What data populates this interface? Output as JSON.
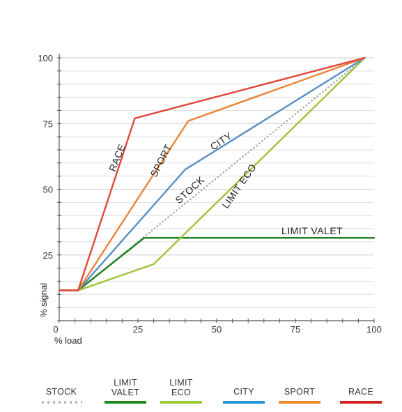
{
  "chart_data": {
    "type": "line",
    "xlabel": "% load",
    "ylabel": "% signal",
    "xlim": [
      0,
      100
    ],
    "ylim": [
      0,
      100
    ],
    "x_ticks": [
      "0",
      "25",
      "50",
      "75",
      "100"
    ],
    "y_ticks": [
      "25",
      "50",
      "75",
      "100"
    ],
    "grid": true,
    "legend_placement": "bottom",
    "series": [
      {
        "name": "STOCK",
        "legend_lines": [
          "STOCK"
        ],
        "chart_label": "STOCK",
        "color": "#a9a9a9",
        "style": "dotted",
        "points": [
          [
            0,
            11.5
          ],
          [
            6,
            11.5
          ],
          [
            97,
            100
          ]
        ]
      },
      {
        "name": "LIMIT VALET",
        "legend_lines": [
          "LIMIT",
          "VALET"
        ],
        "chart_label": "LIMIT VALET",
        "color": "#1e7f1e",
        "style": "solid",
        "points": [
          [
            0,
            11.5
          ],
          [
            6,
            11.5
          ],
          [
            27,
            31.5
          ],
          [
            100,
            31.5
          ]
        ]
      },
      {
        "name": "LIMIT ECO",
        "legend_lines": [
          "LIMIT",
          "ECO"
        ],
        "chart_label": "LIMIT ECO",
        "color": "#9dc43c",
        "style": "solid",
        "points": [
          [
            0,
            11.5
          ],
          [
            6,
            11.5
          ],
          [
            30,
            21.5
          ],
          [
            97,
            100
          ]
        ]
      },
      {
        "name": "CITY",
        "legend_lines": [
          "CITY"
        ],
        "chart_label": "CITY",
        "color": "#5a8fc4",
        "style": "solid",
        "points": [
          [
            0,
            11.5
          ],
          [
            6,
            11.5
          ],
          [
            40,
            57.5
          ],
          [
            97,
            100
          ]
        ]
      },
      {
        "name": "SPORT",
        "legend_lines": [
          "SPORT"
        ],
        "chart_label": "SPORT",
        "color": "#e8843a",
        "style": "solid",
        "points": [
          [
            0,
            11.5
          ],
          [
            6,
            11.5
          ],
          [
            41,
            76
          ],
          [
            97,
            100
          ]
        ]
      },
      {
        "name": "RACE",
        "legend_lines": [
          "RACE"
        ],
        "chart_label": "RACE",
        "color": "#e0473a",
        "style": "solid",
        "points": [
          [
            0,
            11.5
          ],
          [
            6,
            11.5
          ],
          [
            24,
            77
          ],
          [
            97,
            100
          ]
        ]
      }
    ],
    "legend_colors": {
      "STOCK": "#b8b8b8",
      "LIMIT VALET": "#1e8a1e",
      "LIMIT ECO": "#9acd32",
      "CITY": "#2196d9",
      "SPORT": "#f08a24",
      "RACE": "#d42020"
    }
  }
}
